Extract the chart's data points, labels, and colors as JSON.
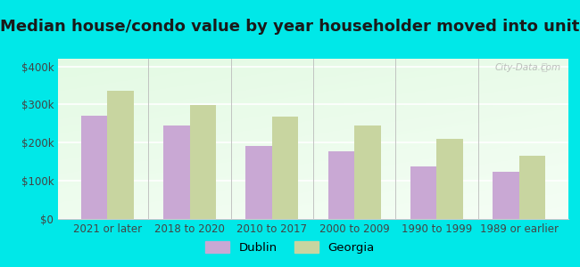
{
  "title": "Median house/condo value by year householder moved into unit",
  "categories": [
    "2021 or later",
    "2018 to 2020",
    "2010 to 2017",
    "2000 to 2009",
    "1990 to 1999",
    "1989 or earlier"
  ],
  "dublin_values": [
    270000,
    245000,
    192000,
    178000,
    138000,
    123000
  ],
  "georgia_values": [
    335000,
    298000,
    268000,
    245000,
    210000,
    165000
  ],
  "dublin_color": "#c9a8d4",
  "georgia_color": "#c8d5a0",
  "outer_bg": "#00e8e8",
  "plot_bg": "#eaf8ea",
  "ylim": [
    0,
    420000
  ],
  "yticks": [
    0,
    100000,
    200000,
    300000,
    400000
  ],
  "ytick_labels": [
    "$0",
    "$100k",
    "$200k",
    "$300k",
    "$400k"
  ],
  "legend_labels": [
    "Dublin",
    "Georgia"
  ],
  "bar_width": 0.32,
  "title_fontsize": 13,
  "tick_fontsize": 8.5,
  "legend_fontsize": 9.5,
  "watermark_text": "City-Data.com"
}
